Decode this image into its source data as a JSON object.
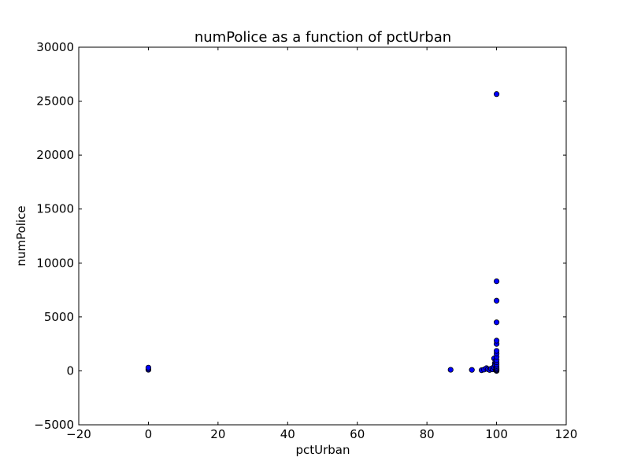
{
  "chart_data": {
    "type": "scatter",
    "title": "numPolice as a function of pctUrban",
    "xlabel": "pctUrban",
    "ylabel": "numPolice",
    "xlim": [
      -20,
      120
    ],
    "ylim": [
      -5000,
      30000
    ],
    "xticks": [
      -20,
      0,
      20,
      40,
      60,
      80,
      100,
      120
    ],
    "yticks": [
      -5000,
      0,
      5000,
      10000,
      15000,
      20000,
      25000,
      30000
    ],
    "xtick_labels": [
      "−20",
      "0",
      "20",
      "40",
      "60",
      "80",
      "100",
      "120"
    ],
    "ytick_labels": [
      "−5000",
      "0",
      "5000",
      "10000",
      "15000",
      "20000",
      "25000",
      "30000"
    ],
    "grid": false,
    "marker_color": "#0000ff",
    "points": [
      [
        0,
        100
      ],
      [
        0,
        180
      ],
      [
        0,
        300
      ],
      [
        86.8,
        100
      ],
      [
        92.9,
        90
      ],
      [
        95.7,
        60
      ],
      [
        96.4,
        120
      ],
      [
        97.1,
        250
      ],
      [
        97.5,
        150
      ],
      [
        98.0,
        80
      ],
      [
        98.4,
        200
      ],
      [
        98.9,
        140
      ],
      [
        99.2,
        350
      ],
      [
        99.3,
        1150
      ],
      [
        99.5,
        700
      ],
      [
        99.6,
        500
      ],
      [
        99.7,
        900
      ],
      [
        99.8,
        60
      ],
      [
        99.9,
        300
      ],
      [
        100,
        0
      ],
      [
        100,
        50
      ],
      [
        100,
        120
      ],
      [
        100,
        200
      ],
      [
        100,
        320
      ],
      [
        100,
        450
      ],
      [
        100,
        600
      ],
      [
        100,
        800
      ],
      [
        100,
        1000
      ],
      [
        100,
        1300
      ],
      [
        100,
        1600
      ],
      [
        100,
        1850
      ],
      [
        100,
        2500
      ],
      [
        100,
        2800
      ],
      [
        100,
        4500
      ],
      [
        100,
        6500
      ],
      [
        100,
        8300
      ],
      [
        100,
        25650
      ]
    ]
  }
}
